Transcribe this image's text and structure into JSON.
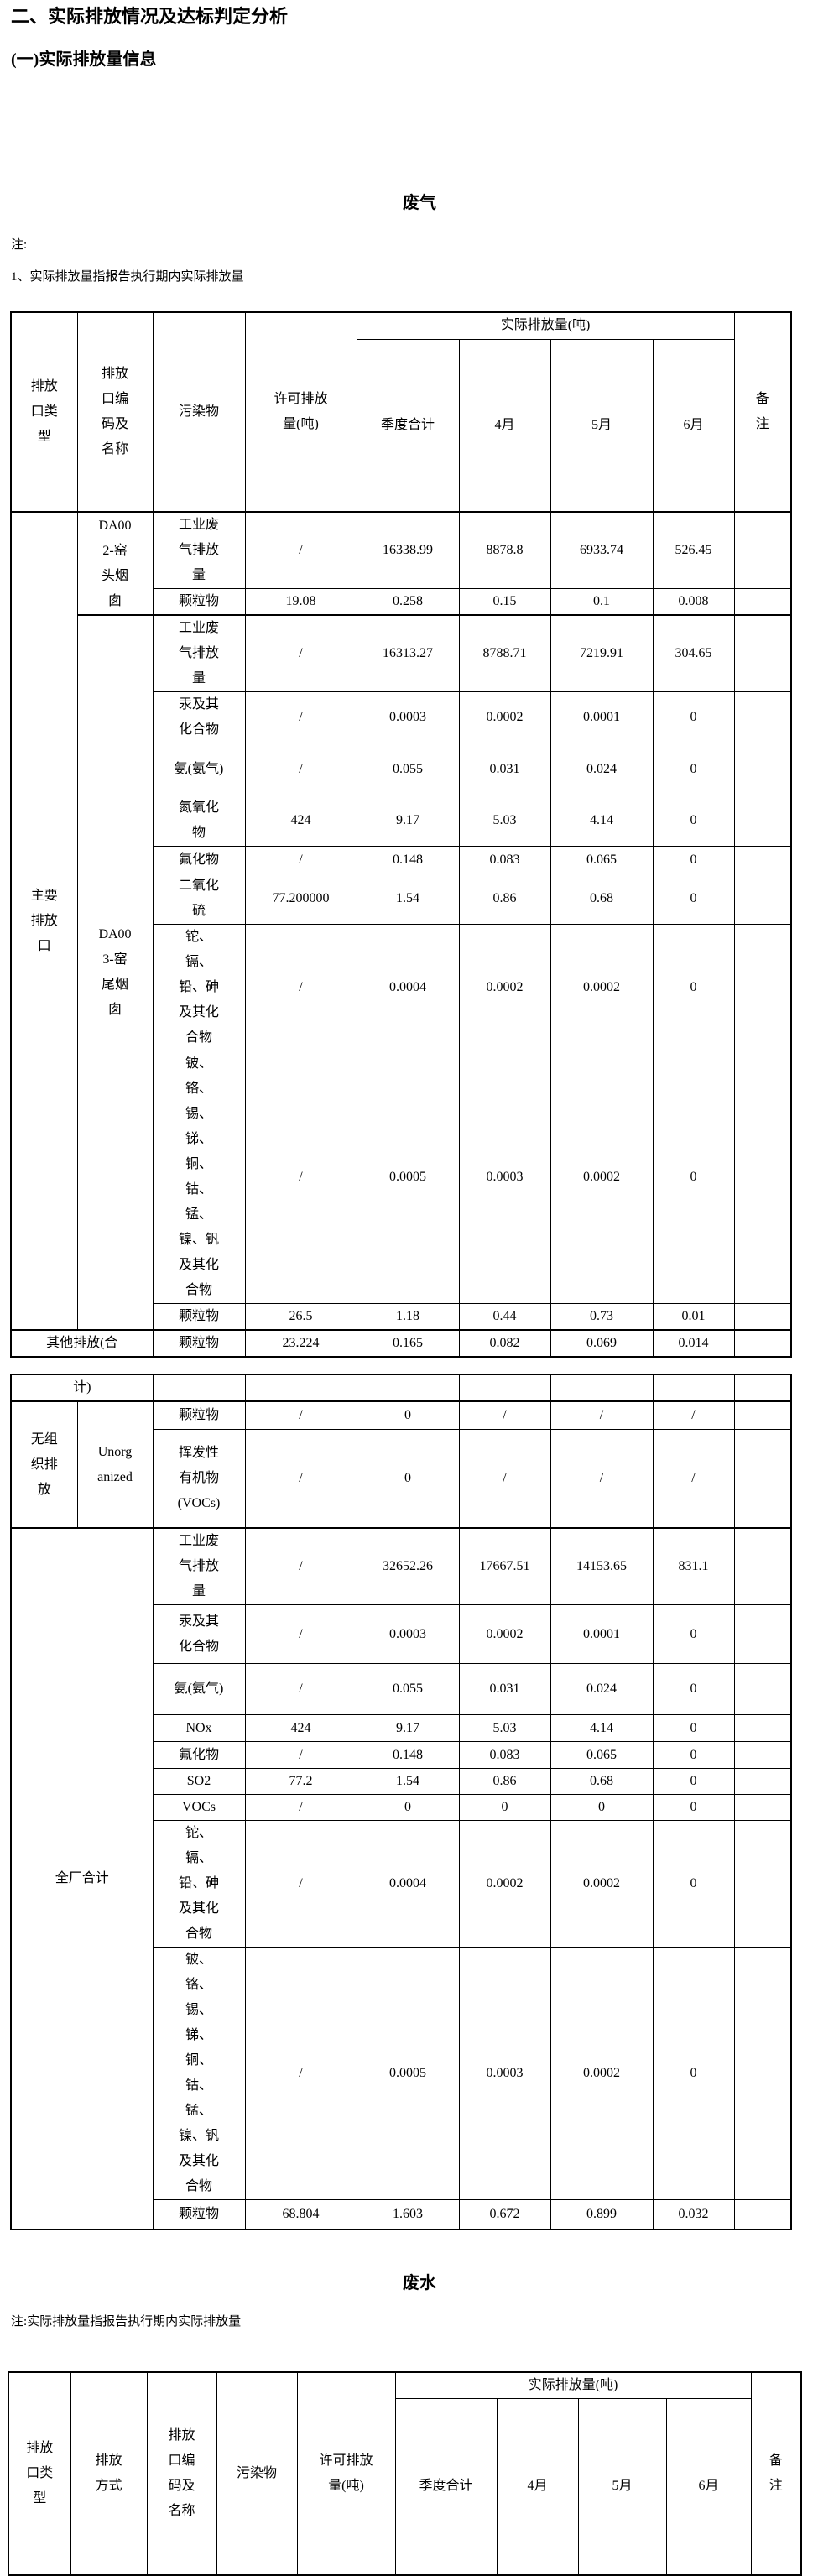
{
  "page": {
    "title": "二、实际排放情况及达标判定分析",
    "subtitle": "(一)实际排放量信息",
    "gas_section_title": "废气",
    "gas_note_label": "注:",
    "gas_note": "1、实际排放量指报告执行期内实际排放量",
    "water_section_title": "废水",
    "water_note": "注:实际排放量指报告执行期内实际排放量"
  },
  "gas_table": {
    "header": {
      "outlet_type": "排放口类型",
      "outlet_code": "排放口编码及名称",
      "pollutant": "污染物",
      "permitted": "许可排放量(吨)",
      "actual_group": "实际排放量(吨)",
      "quarter_total": "季度合计",
      "april": "4月",
      "may": "5月",
      "june": "6月",
      "remark": "备注"
    },
    "rows": [
      {
        "cells": [
          {
            "t": "主要排放口",
            "rs": 11
          },
          {
            "t": "DA002-窑头烟囱",
            "rs": 2
          },
          {
            "t": "工业废气排放量"
          },
          {
            "t": "/"
          },
          {
            "t": "16338.99"
          },
          {
            "t": "8878.8"
          },
          {
            "t": "6933.74"
          },
          {
            "t": "526.45"
          },
          {
            "t": ""
          }
        ]
      },
      {
        "cells": [
          {
            "t": "颗粒物"
          },
          {
            "t": "19.08"
          },
          {
            "t": "0.258"
          },
          {
            "t": "0.15"
          },
          {
            "t": "0.1"
          },
          {
            "t": "0.008"
          },
          {
            "t": ""
          }
        ]
      },
      {
        "cells": [
          {
            "t": "DA003-窑尾烟囱",
            "rs": 9
          },
          {
            "t": "工业废气排放量"
          },
          {
            "t": "/"
          },
          {
            "t": "16313.27"
          },
          {
            "t": "8788.71"
          },
          {
            "t": "7219.91"
          },
          {
            "t": "304.65"
          },
          {
            "t": ""
          }
        ]
      },
      {
        "cells": [
          {
            "t": "汞及其化合物"
          },
          {
            "t": "/"
          },
          {
            "t": "0.0003"
          },
          {
            "t": "0.0002"
          },
          {
            "t": "0.0001"
          },
          {
            "t": "0"
          },
          {
            "t": ""
          }
        ]
      },
      {
        "cells": [
          {
            "t": "氨(氨气)"
          },
          {
            "t": "/"
          },
          {
            "t": "0.055"
          },
          {
            "t": "0.031"
          },
          {
            "t": "0.024"
          },
          {
            "t": "0"
          },
          {
            "t": ""
          }
        ]
      },
      {
        "cells": [
          {
            "t": "氮氧化物"
          },
          {
            "t": "424"
          },
          {
            "t": "9.17"
          },
          {
            "t": "5.03"
          },
          {
            "t": "4.14"
          },
          {
            "t": "0"
          },
          {
            "t": ""
          }
        ]
      },
      {
        "cells": [
          {
            "t": "氟化物"
          },
          {
            "t": "/"
          },
          {
            "t": "0.148"
          },
          {
            "t": "0.083"
          },
          {
            "t": "0.065"
          },
          {
            "t": "0"
          },
          {
            "t": ""
          }
        ]
      },
      {
        "cells": [
          {
            "t": "二氧化硫"
          },
          {
            "t": "77.200000"
          },
          {
            "t": "1.54"
          },
          {
            "t": "0.86"
          },
          {
            "t": "0.68"
          },
          {
            "t": "0"
          },
          {
            "t": ""
          }
        ]
      },
      {
        "cells": [
          {
            "t": "铊、镉、铅、砷及其化合物"
          },
          {
            "t": "/"
          },
          {
            "t": "0.0004"
          },
          {
            "t": "0.0002"
          },
          {
            "t": "0.0002"
          },
          {
            "t": "0"
          },
          {
            "t": ""
          }
        ]
      },
      {
        "cells": [
          {
            "t": "铍、铬、锡、锑、铜、钴、锰、镍、钒及其化合物"
          },
          {
            "t": "/"
          },
          {
            "t": "0.0005"
          },
          {
            "t": "0.0003"
          },
          {
            "t": "0.0002"
          },
          {
            "t": "0"
          },
          {
            "t": ""
          }
        ]
      },
      {
        "cells": [
          {
            "t": "颗粒物"
          },
          {
            "t": "26.5"
          },
          {
            "t": "1.18"
          },
          {
            "t": "0.44"
          },
          {
            "t": "0.73"
          },
          {
            "t": "0.01"
          },
          {
            "t": ""
          }
        ]
      },
      {
        "cells": [
          {
            "t": "其他排放(合",
            "cs": 2
          },
          {
            "t": "颗粒物"
          },
          {
            "t": "23.224"
          },
          {
            "t": "0.165"
          },
          {
            "t": "0.082"
          },
          {
            "t": "0.069"
          },
          {
            "t": "0.014"
          },
          {
            "t": ""
          }
        ]
      }
    ]
  },
  "gas_table_continued": {
    "rows": [
      {
        "cells": [
          {
            "t": "计)",
            "cs": 2
          },
          {
            "t": ""
          },
          {
            "t": ""
          },
          {
            "t": ""
          },
          {
            "t": ""
          },
          {
            "t": ""
          },
          {
            "t": ""
          },
          {
            "t": ""
          }
        ]
      },
      {
        "cells": [
          {
            "t": "无组织排放",
            "rs": 2
          },
          {
            "t": "Unorganized",
            "rs": 2
          },
          {
            "t": "颗粒物"
          },
          {
            "t": "/"
          },
          {
            "t": "0"
          },
          {
            "t": "/"
          },
          {
            "t": "/"
          },
          {
            "t": "/"
          },
          {
            "t": ""
          }
        ]
      },
      {
        "cells": [
          {
            "t": "挥发性有机物(VOCs)"
          },
          {
            "t": "/"
          },
          {
            "t": "0"
          },
          {
            "t": "/"
          },
          {
            "t": "/"
          },
          {
            "t": "/"
          },
          {
            "t": ""
          }
        ]
      },
      {
        "cells": [
          {
            "t": "全厂合计",
            "cs": 2,
            "rs": 10
          },
          {
            "t": "工业废气排放量"
          },
          {
            "t": "/"
          },
          {
            "t": "32652.26"
          },
          {
            "t": "17667.51"
          },
          {
            "t": "14153.65"
          },
          {
            "t": "831.1"
          },
          {
            "t": ""
          }
        ]
      },
      {
        "cells": [
          {
            "t": "汞及其化合物"
          },
          {
            "t": "/"
          },
          {
            "t": "0.0003"
          },
          {
            "t": "0.0002"
          },
          {
            "t": "0.0001"
          },
          {
            "t": "0"
          },
          {
            "t": ""
          }
        ]
      },
      {
        "cells": [
          {
            "t": "氨(氨气)"
          },
          {
            "t": "/"
          },
          {
            "t": "0.055"
          },
          {
            "t": "0.031"
          },
          {
            "t": "0.024"
          },
          {
            "t": "0"
          },
          {
            "t": ""
          }
        ]
      },
      {
        "cells": [
          {
            "t": "NOx"
          },
          {
            "t": "424"
          },
          {
            "t": "9.17"
          },
          {
            "t": "5.03"
          },
          {
            "t": "4.14"
          },
          {
            "t": "0"
          },
          {
            "t": ""
          }
        ]
      },
      {
        "cells": [
          {
            "t": "氟化物"
          },
          {
            "t": "/"
          },
          {
            "t": "0.148"
          },
          {
            "t": "0.083"
          },
          {
            "t": "0.065"
          },
          {
            "t": "0"
          },
          {
            "t": ""
          }
        ]
      },
      {
        "cells": [
          {
            "t": "SO2"
          },
          {
            "t": "77.2"
          },
          {
            "t": "1.54"
          },
          {
            "t": "0.86"
          },
          {
            "t": "0.68"
          },
          {
            "t": "0"
          },
          {
            "t": ""
          }
        ]
      },
      {
        "cells": [
          {
            "t": "VOCs"
          },
          {
            "t": "/"
          },
          {
            "t": "0"
          },
          {
            "t": "0"
          },
          {
            "t": "0"
          },
          {
            "t": "0"
          },
          {
            "t": ""
          }
        ]
      },
      {
        "cells": [
          {
            "t": "铊、镉、铅、砷及其化合物"
          },
          {
            "t": "/"
          },
          {
            "t": "0.0004"
          },
          {
            "t": "0.0002"
          },
          {
            "t": "0.0002"
          },
          {
            "t": "0"
          },
          {
            "t": ""
          }
        ]
      },
      {
        "cells": [
          {
            "t": "铍、铬、锡、锑、铜、钴、锰、镍、钒及其化合物"
          },
          {
            "t": "/"
          },
          {
            "t": "0.0005"
          },
          {
            "t": "0.0003"
          },
          {
            "t": "0.0002"
          },
          {
            "t": "0"
          },
          {
            "t": ""
          }
        ]
      },
      {
        "cells": [
          {
            "t": "颗粒物"
          },
          {
            "t": "68.804"
          },
          {
            "t": "1.603"
          },
          {
            "t": "0.672"
          },
          {
            "t": "0.899"
          },
          {
            "t": "0.032"
          },
          {
            "t": ""
          }
        ]
      }
    ]
  },
  "water_table": {
    "header": {
      "outlet_type": "排放口类型",
      "discharge_mode": "排放方式",
      "outlet_code": "排放口编码及名称",
      "pollutant": "污染物",
      "permitted": "许可排放量(吨)",
      "actual_group": "实际排放量(吨)",
      "quarter_total": "季度合计",
      "april": "4月",
      "may": "5月",
      "june": "6月",
      "remark": "备注"
    }
  }
}
